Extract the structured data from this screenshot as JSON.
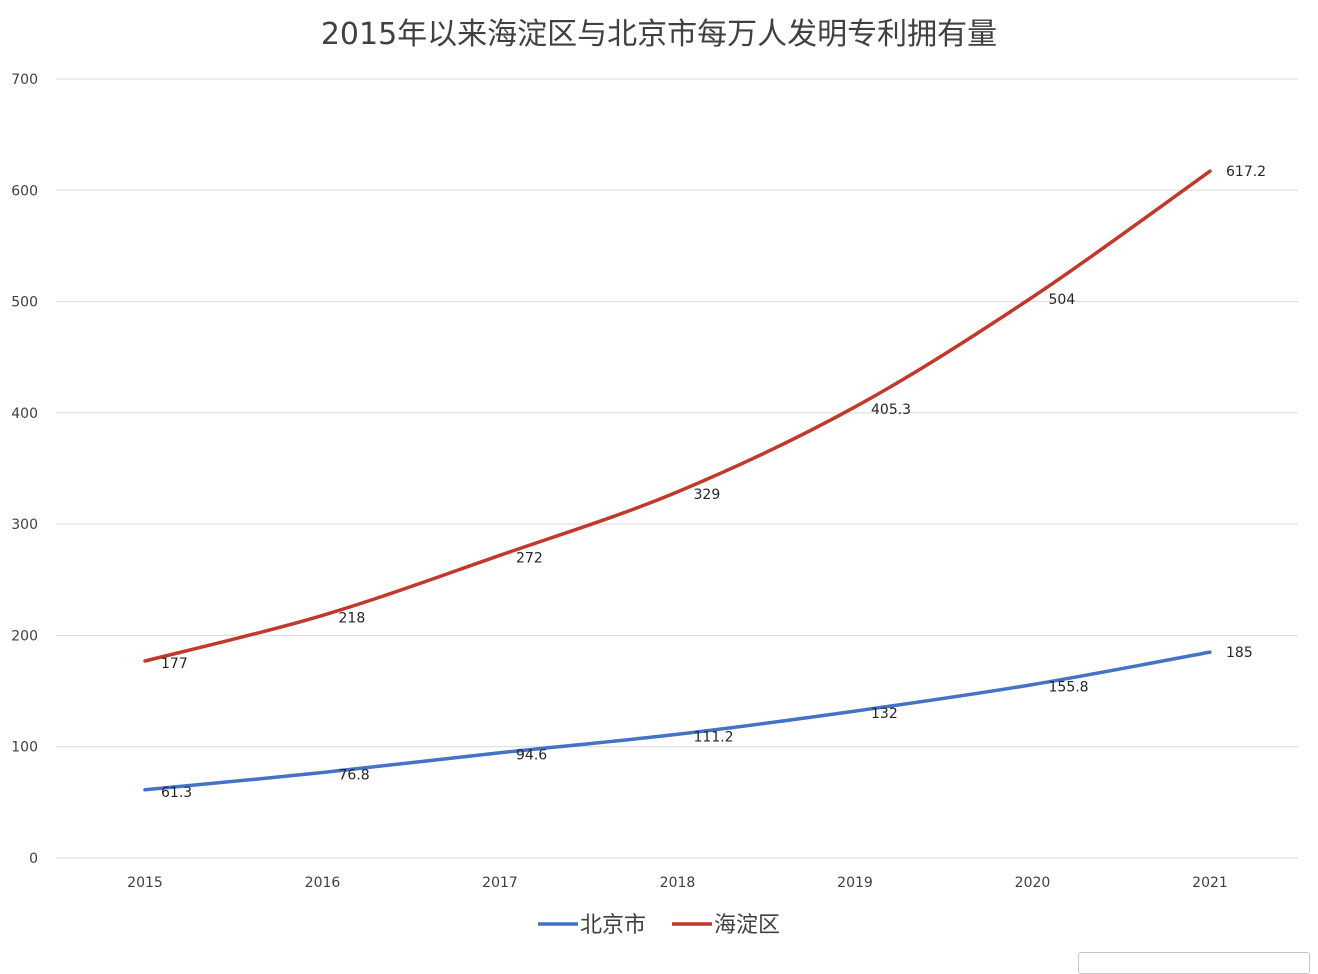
{
  "chart_data": {
    "type": "line",
    "title": "2015年以来海淀区与北京市每万人发明专利拥有量",
    "categories": [
      "2015",
      "2016",
      "2017",
      "2018",
      "2019",
      "2020",
      "2021"
    ],
    "series": [
      {
        "name": "北京市",
        "color": "#4472c4",
        "values": [
          61.3,
          76.8,
          94.6,
          111.2,
          132,
          155.8,
          185
        ]
      },
      {
        "name": "海淀区",
        "color": "#c0392b",
        "values": [
          177,
          218,
          272,
          329,
          405.3,
          504,
          617.2
        ]
      }
    ],
    "ylim": [
      0,
      700
    ],
    "yticks": [
      0,
      100,
      200,
      300,
      400,
      500,
      600,
      700
    ],
    "grid": true,
    "legend_position": "bottom"
  }
}
